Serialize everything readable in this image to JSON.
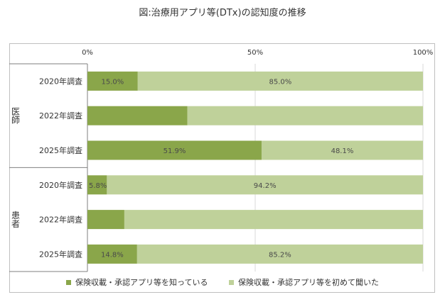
{
  "chart_data": {
    "type": "bar",
    "orientation": "horizontal",
    "stacked": true,
    "title": "図:治療用アプリ等(DTx)の認知度の推移",
    "xlim": [
      0,
      100
    ],
    "ticks": [
      {
        "value": 0,
        "label": "0%"
      },
      {
        "value": 50,
        "label": "50%"
      },
      {
        "value": 100,
        "label": "100%"
      }
    ],
    "groups": [
      {
        "name": "医師",
        "rows": [
          {
            "label": "2020年調査",
            "know": 15.0,
            "heard": 85.0,
            "know_label": "15.0%",
            "heard_label": "85.0%"
          },
          {
            "label": "2022年調査",
            "know": 29.8,
            "heard": 70.2,
            "know_label": "",
            "heard_label": ""
          },
          {
            "label": "2025年調査",
            "know": 51.9,
            "heard": 48.1,
            "know_label": "51.9%",
            "heard_label": "48.1%"
          }
        ]
      },
      {
        "name": "患者",
        "rows": [
          {
            "label": "2020年調査",
            "know": 5.8,
            "heard": 94.2,
            "know_label": "5.8%",
            "heard_label": "94.2%"
          },
          {
            "label": "2022年調査",
            "know": 11.0,
            "heard": 89.0,
            "know_label": "",
            "heard_label": ""
          },
          {
            "label": "2025年調査",
            "know": 14.8,
            "heard": 85.2,
            "know_label": "14.8%",
            "heard_label": "85.2%"
          }
        ]
      }
    ],
    "series": [
      {
        "key": "know",
        "name": "保険収載・承認アプリ等を知っている",
        "color": "#8aa64a"
      },
      {
        "key": "heard",
        "name": "保険収載・承認アプリ等を初めて聞いた",
        "color": "#bfd19a"
      }
    ],
    "legend_position": "bottom"
  }
}
